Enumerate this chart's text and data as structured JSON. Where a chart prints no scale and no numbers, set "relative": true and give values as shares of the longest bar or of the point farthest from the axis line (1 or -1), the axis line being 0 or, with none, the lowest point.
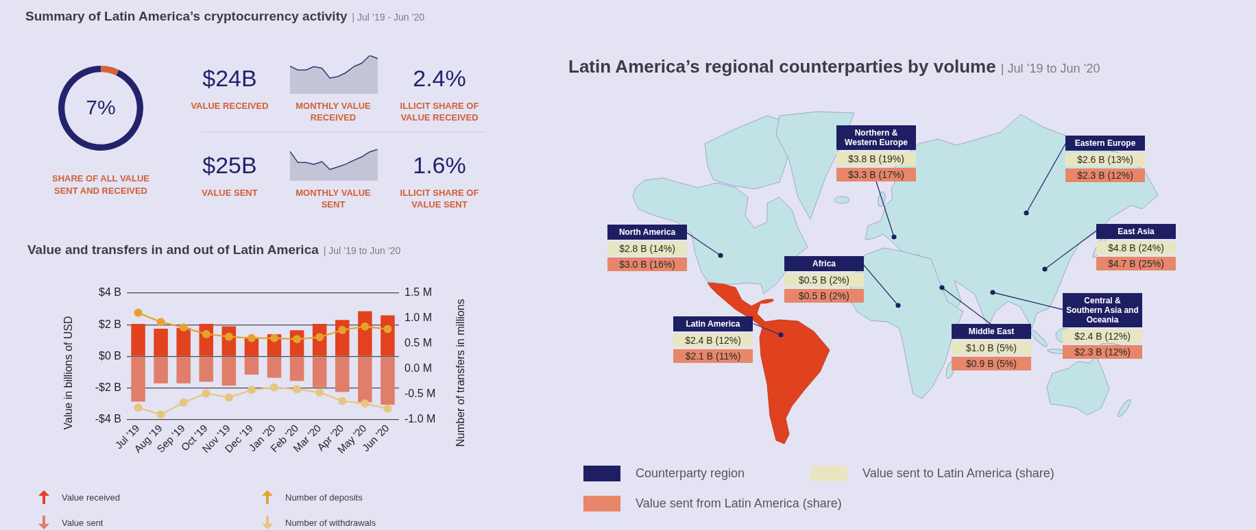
{
  "chart_data": [
    {
      "type": "other",
      "title": "Summary of Latin America’s cryptocurrency activity",
      "subtitle": "| Jul ’19 - Jun ’20",
      "annotations": [
        "$24B",
        "VALUE RECEIVED",
        "2.4%",
        "ILLICIT SHARE OF VALUE RECEIVED",
        "$25B",
        "VALUE SENT",
        "1.6%",
        "ILLICIT SHARE OF VALUE SENT"
      ]
    },
    {
      "type": "donut",
      "categories": [
        null,
        null
      ],
      "values": [
        7,
        93
      ],
      "colors": [
        "#d0643b",
        "#23226c"
      ],
      "value_labels": [
        "7%",
        null
      ],
      "annotations": [
        "SHARE OF ALL VALUE SENT AND RECEIVED"
      ]
    },
    {
      "type": "area",
      "relative": true,
      "xlabel": "MONTHLY VALUE RECEIVED",
      "categories": [
        null,
        null,
        null,
        null,
        null,
        null,
        null,
        null,
        null,
        null,
        null,
        null
      ],
      "values": [
        0.72,
        0.62,
        0.62,
        0.71,
        0.67,
        0.41,
        0.45,
        0.55,
        0.71,
        0.8,
        1,
        0.92
      ],
      "color": "#c3c5d7"
    },
    {
      "type": "area",
      "relative": true,
      "xlabel": "MONTHLY VALUE SENT",
      "categories": [
        null,
        null,
        null,
        null,
        null,
        null,
        null,
        null,
        null,
        null,
        null,
        null
      ],
      "values": [
        0.93,
        0.58,
        0.58,
        0.52,
        0.61,
        0.36,
        0.44,
        0.53,
        0.65,
        0.76,
        0.92,
        1
      ],
      "color": "#c3c5d7"
    },
    {
      "type": "bar",
      "title": "Value and transfers in and out of Latin America",
      "subtitle": "| Jul ’19 to Jun ’20",
      "categories": [
        "Jul '19",
        "Aug '19",
        "Sep '19",
        "Oct '19",
        "Nov '19",
        "Dec '19",
        "Jan '20",
        "Feb '20",
        "Mar '20",
        "Apr '20",
        "May '20",
        "Jun '20"
      ],
      "ylabel": "Value in billions of USD",
      "y2label": "Number of transfers in millions",
      "stacked": true,
      "series": [
        {
          "name": "Value received",
          "color": "#e2421e",
          "values": [
            2.05,
            1.75,
            1.8,
            2.05,
            1.9,
            1.2,
            1.4,
            1.65,
            2.05,
            2.3,
            2.85,
            2.6
          ]
        },
        {
          "name": "Value sent",
          "color": "#e07e6b",
          "values": [
            -2.85,
            -1.7,
            -1.7,
            -1.6,
            -1.85,
            -1.15,
            -1.35,
            -1.55,
            -1.95,
            -2.25,
            -2.9,
            -3.05
          ]
        },
        {
          "name": "Number of deposits",
          "type": "line",
          "axis": "y2",
          "color": "#e6a22e",
          "values": [
            1.11,
            0.93,
            0.82,
            0.69,
            0.64,
            0.61,
            0.61,
            0.59,
            0.63,
            0.77,
            0.84,
            0.79
          ]
        },
        {
          "name": "Number of withdrawals",
          "type": "line",
          "axis": "y2",
          "color": "#e8c47f",
          "values": [
            -0.76,
            -0.9,
            -0.66,
            -0.48,
            -0.56,
            -0.41,
            -0.36,
            -0.4,
            -0.46,
            -0.63,
            -0.68,
            -0.78
          ]
        }
      ],
      "ylim": [
        -4,
        4
      ],
      "yticks": [
        {
          "value": 4,
          "label": "$4 B"
        },
        {
          "value": 2,
          "label": "$2 B"
        },
        {
          "value": 0,
          "label": "$0 B"
        },
        {
          "value": -2,
          "label": "-$2 B"
        },
        {
          "value": -4,
          "label": "-$4 B"
        }
      ],
      "y2lim": [
        -1,
        1.5
      ],
      "y2ticks": [
        {
          "value": 1.5,
          "label": "1.5 M"
        },
        {
          "value": 1,
          "label": "1.0 M"
        },
        {
          "value": 0.5,
          "label": "0.5 M"
        },
        {
          "value": 0,
          "label": "0.0 M"
        },
        {
          "value": -0.5,
          "label": "-0.5 M"
        },
        {
          "value": -1,
          "label": "-1.0 M"
        }
      ],
      "grid": "y",
      "legend": "bottom",
      "marker": "circle"
    },
    {
      "type": "other",
      "title": "Latin America’s regional counterparties by volume",
      "subtitle": "| Jul ’19 to Jun ’20",
      "categories": [
        "Northern & Western Europe",
        "Eastern Europe",
        "North America",
        "East Asia",
        "Africa",
        "Central & Southern Asia and Oceania",
        "Latin America",
        "Middle East"
      ],
      "series": [
        {
          "name": "Value sent to Latin America (share)",
          "color": "#e8e6c1",
          "values": [
            3.8,
            2.6,
            2.8,
            4.8,
            0.5,
            2.4,
            2.4,
            1.0
          ],
          "value_labels": [
            "$3.8 B (19%)",
            "$2.6 B (13%)",
            "$2.8 B (14%)",
            "$4.8 B (24%)",
            "$0.5 B (2%)",
            "$2.4 B (12%)",
            "$2.4 B (12%)",
            "$1.0 B (5%)"
          ]
        },
        {
          "name": "Value sent from Latin America (share)",
          "color": "#e8866a",
          "values": [
            3.3,
            2.3,
            3.0,
            4.7,
            0.5,
            2.3,
            2.1,
            0.9
          ],
          "value_labels": [
            "$3.3 B (17%)",
            "$2.3 B (12%)",
            "$3.0 B (16%)",
            "$4.7 B (25%)",
            "$0.5 B (2%)",
            "$2.3 B (12%)",
            "$2.1 B (11%)",
            "$0.9 B (5%)"
          ]
        }
      ],
      "annotations": [
        "Counterparty region"
      ],
      "legend": "bottom"
    }
  ]
}
